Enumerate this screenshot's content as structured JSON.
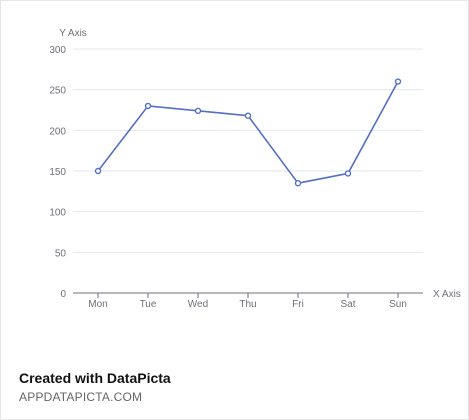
{
  "chart_data": {
    "type": "line",
    "title": "",
    "xlabel": "X Axis",
    "ylabel": "Y Axis",
    "categories": [
      "Mon",
      "Tue",
      "Wed",
      "Thu",
      "Fri",
      "Sat",
      "Sun"
    ],
    "series": [
      {
        "values": [
          150,
          230,
          224,
          218,
          135,
          147,
          260
        ]
      }
    ],
    "ylim": [
      0,
      300
    ],
    "yticks": [
      0,
      50,
      100,
      150,
      200,
      250,
      300
    ],
    "grid": true,
    "line_color": "#5470c6",
    "axis_color": "#6e7079",
    "grid_color": "#e0e6f1",
    "label_color": "#6e7079"
  },
  "footer": {
    "title": "Created with DataPicta",
    "subtitle": "APPDATAPICTA.COM"
  }
}
